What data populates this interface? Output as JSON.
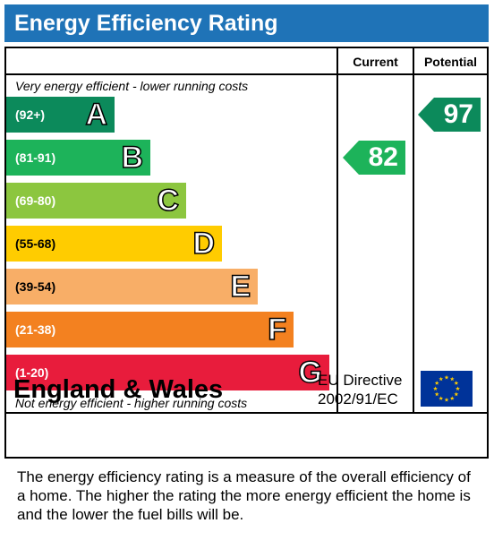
{
  "title": "Energy Efficiency Rating",
  "columns": {
    "current": "Current",
    "potential": "Potential"
  },
  "captions": {
    "top": "Very energy efficient - lower running costs",
    "bottom": "Not energy efficient - higher running costs"
  },
  "chart_data": {
    "type": "bar",
    "categories": [
      "A",
      "B",
      "C",
      "D",
      "E",
      "F",
      "G"
    ],
    "ranges": [
      "(92+)",
      "(81-91)",
      "(69-80)",
      "(55-68)",
      "(39-54)",
      "(21-38)",
      "(1-20)"
    ],
    "colors": [
      "#0c8a5b",
      "#1db35a",
      "#8cc63f",
      "#ffcc00",
      "#f8ae67",
      "#f38120",
      "#e81c3c"
    ],
    "current": {
      "value": 82,
      "band": "B",
      "color": "#1db35a"
    },
    "potential": {
      "value": 97,
      "band": "A",
      "color": "#0c8a5b"
    }
  },
  "footer": {
    "country": "England & Wales",
    "directive_line1": "EU Directive",
    "directive_line2": "2002/91/EC",
    "flag_icon": "eu-flag-icon"
  },
  "description": "The energy efficiency rating is a measure of the overall efficiency of a home.  The higher the rating the more energy efficient the home is and the lower the fuel bills will be."
}
